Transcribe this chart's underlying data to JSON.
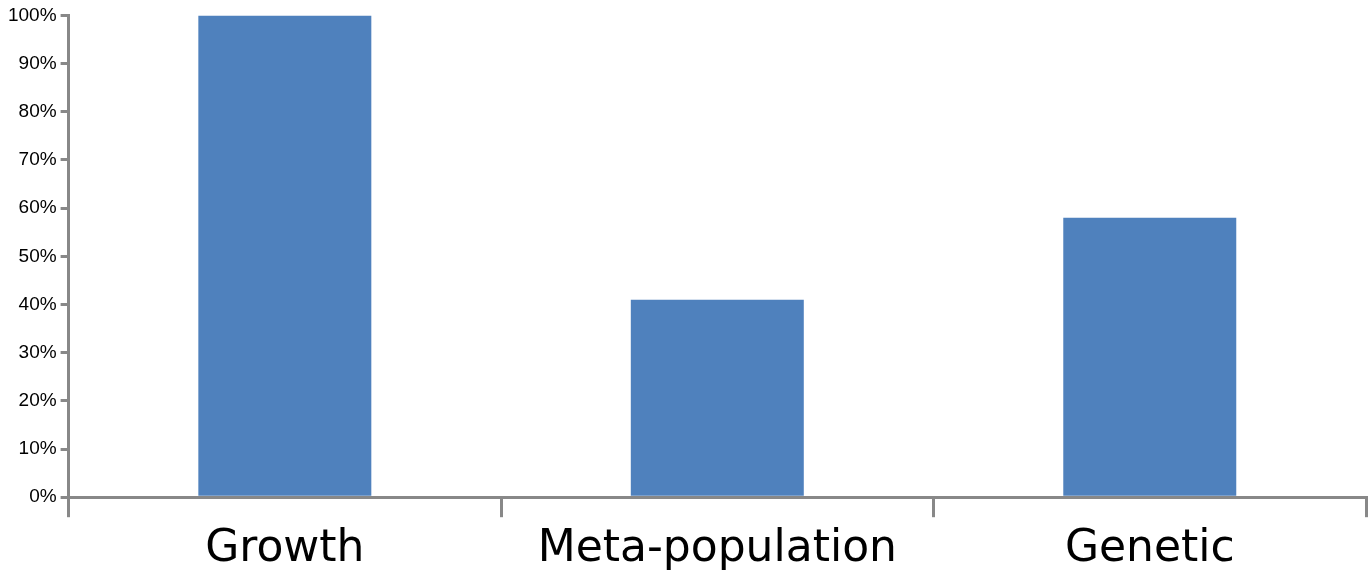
{
  "chart_data": {
    "type": "bar",
    "categories": [
      "Growth",
      "Meta-population",
      "Genetic"
    ],
    "values": [
      100,
      41,
      58
    ],
    "color": "#4f81bd",
    "ylim": [
      0,
      100
    ],
    "yticks": [
      {
        "value": 0,
        "label": "0%"
      },
      {
        "value": 10,
        "label": "10%"
      },
      {
        "value": 20,
        "label": "20%"
      },
      {
        "value": 30,
        "label": "30%"
      },
      {
        "value": 40,
        "label": "40%"
      },
      {
        "value": 50,
        "label": "50%"
      },
      {
        "value": 60,
        "label": "60%"
      },
      {
        "value": 70,
        "label": "70%"
      },
      {
        "value": 80,
        "label": "80%"
      },
      {
        "value": 90,
        "label": "90%"
      },
      {
        "value": 100,
        "label": "100%"
      }
    ],
    "grid": false,
    "legend": false
  }
}
